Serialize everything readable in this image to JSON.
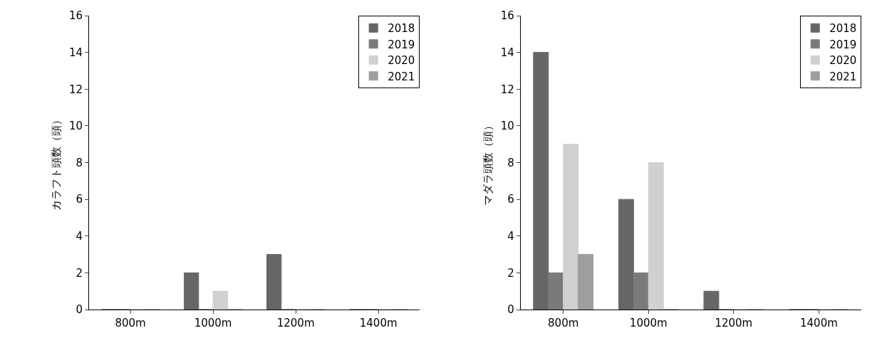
{
  "chart_data": [
    {
      "type": "bar",
      "ylabel": "カラフト頭数（頭）",
      "categories": [
        "800m",
        "1000m",
        "1200m",
        "1400m"
      ],
      "ylim": [
        0,
        16
      ],
      "yticks": [
        0,
        2,
        4,
        6,
        8,
        10,
        12,
        14,
        16
      ],
      "grid": false,
      "legend": "top right",
      "series": [
        {
          "name": "2018",
          "color": "#666666",
          "values": [
            0,
            2,
            3,
            0
          ]
        },
        {
          "name": "2019",
          "color": "#7a7a7a",
          "values": [
            0,
            0,
            0,
            0
          ]
        },
        {
          "name": "2020",
          "color": "#d0d0d0",
          "values": [
            0,
            1,
            0,
            0
          ]
        },
        {
          "name": "2021",
          "color": "#9e9e9e",
          "values": [
            0,
            0,
            0,
            0
          ]
        }
      ]
    },
    {
      "type": "bar",
      "ylabel": "マダラ頭数（頭）",
      "categories": [
        "800m",
        "1000m",
        "1200m",
        "1400m"
      ],
      "ylim": [
        0,
        16
      ],
      "yticks": [
        0,
        2,
        4,
        6,
        8,
        10,
        12,
        14,
        16
      ],
      "grid": false,
      "legend": "top right",
      "series": [
        {
          "name": "2018",
          "color": "#666666",
          "values": [
            14,
            6,
            1,
            0
          ]
        },
        {
          "name": "2019",
          "color": "#7a7a7a",
          "values": [
            2,
            2,
            0,
            0
          ]
        },
        {
          "name": "2020",
          "color": "#d0d0d0",
          "values": [
            9,
            8,
            0,
            0
          ]
        },
        {
          "name": "2021",
          "color": "#9e9e9e",
          "values": [
            3,
            0,
            0,
            0
          ]
        }
      ]
    }
  ]
}
